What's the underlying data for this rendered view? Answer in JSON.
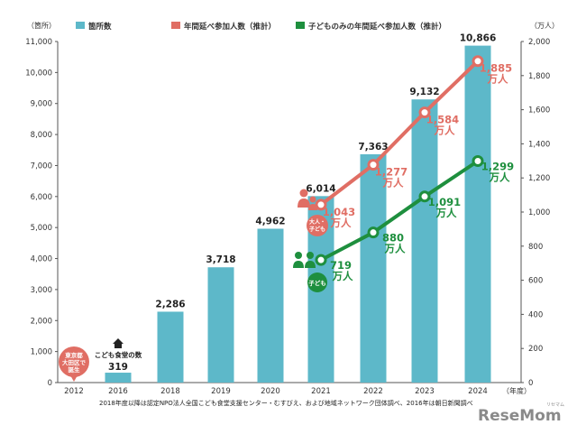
{
  "chart_data": {
    "type": "bar",
    "left_axis_unit": "（箇所）",
    "right_axis_unit": "（万人）",
    "x_axis_unit": "（年度）",
    "categories": [
      "2012",
      "2016",
      "2018",
      "2019",
      "2020",
      "2021",
      "2022",
      "2023",
      "2024"
    ],
    "left_ylim": [
      0,
      11000
    ],
    "left_ticks": [
      "0",
      "1,000",
      "2,000",
      "3,000",
      "4,000",
      "5,000",
      "6,000",
      "7,000",
      "8,000",
      "9,000",
      "10,000",
      "11,000"
    ],
    "right_ylim": [
      0,
      2000
    ],
    "right_ticks": [
      "0",
      "200",
      "400",
      "600",
      "800",
      "1,000",
      "1,200",
      "1,400",
      "1,600",
      "1,800",
      "2,000"
    ],
    "series": [
      {
        "name": "箇所数",
        "type": "bar",
        "axis": "left",
        "color": "#5db8c9",
        "values": [
          0,
          319,
          2286,
          3718,
          4962,
          6014,
          7363,
          9132,
          10866
        ],
        "labels": [
          "",
          "319",
          "2,286",
          "3,718",
          "4,962",
          "6,014",
          "7,363",
          "9,132",
          "10,866"
        ]
      },
      {
        "name": "年間延べ参加人数（推計）",
        "type": "line",
        "axis": "right",
        "color": "#e06e64",
        "x": [
          "2021",
          "2022",
          "2023",
          "2024"
        ],
        "values": [
          1043,
          1277,
          1584,
          1885
        ],
        "labels": [
          "1,043",
          "1,277",
          "1,584",
          "1,885"
        ]
      },
      {
        "name": "子どものみの年間延べ参加人数（推計）",
        "type": "line",
        "axis": "right",
        "color": "#1e8f3e",
        "x": [
          "2021",
          "2022",
          "2023",
          "2024"
        ],
        "values": [
          719,
          880,
          1091,
          1299
        ],
        "labels": [
          "719",
          "880",
          "1,091",
          "1,299"
        ]
      }
    ],
    "value_suffix": "万人",
    "grid": false,
    "legend_position": "top-left",
    "annotations": {
      "origin_bubble": [
        "東京都",
        "大田区で",
        "誕生"
      ],
      "store_label": "こども食堂の数",
      "adult_child_badge": [
        "大人・",
        "子ども"
      ],
      "child_badge": "子ども"
    },
    "source": "2018年度以降は認定NPO法人全国こども食堂支援センター・むすびえ、および地域ネットワーク団体調べ、2016年は朝日新聞調べ"
  },
  "brand": {
    "logo": "ReseMom",
    "logo_small": "リセマム"
  }
}
